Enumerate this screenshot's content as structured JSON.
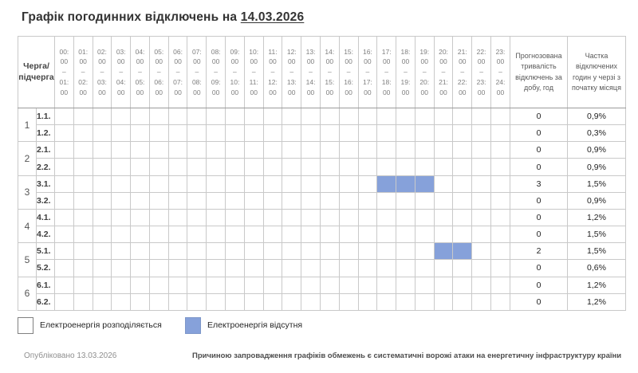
{
  "title": {
    "text": "Графік погодинних відключень на",
    "date": "14.03.2026"
  },
  "colors": {
    "outage_fill": "#86a1da",
    "grid_line": "#c9c9c9",
    "group_line": "#9b9b9b"
  },
  "table": {
    "corner_header": "Черга/\nпідчерга",
    "hour_headers": [
      "00:\n00\n–\n01:\n00",
      "01:\n00\n–\n02:\n00",
      "02:\n00\n–\n03:\n00",
      "03:\n00\n–\n04:\n00",
      "04:\n00\n–\n05:\n00",
      "05:\n00\n–\n06:\n00",
      "06:\n00\n–\n07:\n00",
      "07:\n00\n–\n08:\n00",
      "08:\n00\n–\n09:\n00",
      "09:\n00\n–\n10:\n00",
      "10:\n00\n–\n11:\n00",
      "11:\n00\n–\n12:\n00",
      "12:\n00\n–\n13:\n00",
      "13:\n00\n–\n14:\n00",
      "14:\n00\n–\n15:\n00",
      "15:\n00\n–\n16:\n00",
      "16:\n00\n–\n17:\n00",
      "17:\n00\n–\n18:\n00",
      "18:\n00\n–\n19:\n00",
      "19:\n00\n–\n20:\n00",
      "20:\n00\n–\n21:\n00",
      "21:\n00\n–\n22:\n00",
      "22:\n00\n–\n23:\n00",
      "23:\n00\n–\n24:\n00"
    ],
    "duration_header": "Прогнозована тривалість відключень за добу, год",
    "share_header": "Частка відключених годин у черзі з початку місяця",
    "rows": [
      {
        "queue": "1",
        "sub": "1.1.",
        "outage_hours": [],
        "duration": "0",
        "share": "0,9%"
      },
      {
        "sub": "1.2.",
        "outage_hours": [],
        "duration": "0",
        "share": "0,3%"
      },
      {
        "queue": "2",
        "sub": "2.1.",
        "outage_hours": [],
        "duration": "0",
        "share": "0,9%"
      },
      {
        "sub": "2.2.",
        "outage_hours": [],
        "duration": "0",
        "share": "0,9%"
      },
      {
        "queue": "3",
        "sub": "3.1.",
        "outage_hours": [
          17,
          18,
          19
        ],
        "duration": "3",
        "share": "1,5%"
      },
      {
        "sub": "3.2.",
        "outage_hours": [],
        "duration": "0",
        "share": "0,9%"
      },
      {
        "queue": "4",
        "sub": "4.1.",
        "outage_hours": [],
        "duration": "0",
        "share": "1,2%"
      },
      {
        "sub": "4.2.",
        "outage_hours": [],
        "duration": "0",
        "share": "1,5%"
      },
      {
        "queue": "5",
        "sub": "5.1.",
        "outage_hours": [
          20,
          21
        ],
        "duration": "2",
        "share": "1,5%"
      },
      {
        "sub": "5.2.",
        "outage_hours": [],
        "duration": "0",
        "share": "0,6%"
      },
      {
        "queue": "6",
        "sub": "6.1.",
        "outage_hours": [],
        "duration": "0",
        "share": "1,2%"
      },
      {
        "sub": "6.2.",
        "outage_hours": [],
        "duration": "0",
        "share": "1,2%"
      }
    ]
  },
  "legend": {
    "power_on": "Електроенергія розподіляється",
    "power_off": "Електроенергія відсутня"
  },
  "footer": {
    "published": "Опубліковано 13.03.2026",
    "note": "Причиною запровадження графіків обмежень є систематичні ворожі атаки на енергетичну інфраструктуру країни"
  }
}
